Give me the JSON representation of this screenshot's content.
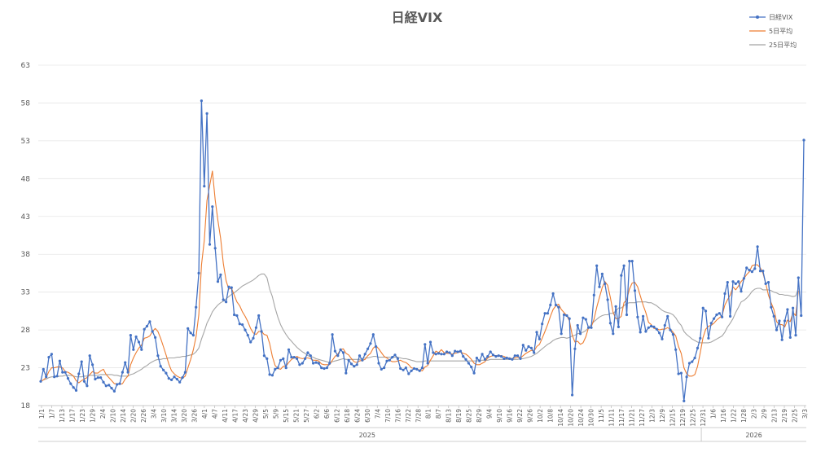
{
  "chart_data": {
    "type": "line",
    "title": "日経VIX",
    "ylim": [
      18,
      63
    ],
    "yticks": [
      18,
      23,
      28,
      33,
      38,
      43,
      48,
      53,
      58,
      63
    ],
    "grid": true,
    "legend_position": "top-right",
    "x_tick_labels": [
      "1/1",
      "1/7",
      "1/13",
      "1/17",
      "1/23",
      "1/29",
      "2/4",
      "2/10",
      "2/14",
      "2/20",
      "2/26",
      "3/4",
      "3/10",
      "3/14",
      "3/20",
      "3/26",
      "4/1",
      "4/7",
      "4/11",
      "4/17",
      "4/23",
      "4/29",
      "5/5",
      "5/9",
      "5/15",
      "5/21",
      "5/27",
      "6/2",
      "6/6",
      "6/12",
      "6/18",
      "6/24",
      "6/30",
      "7/4",
      "7/10",
      "7/16",
      "7/22",
      "7/28",
      "8/1",
      "8/7",
      "8/13",
      "8/19",
      "8/25",
      "8/29",
      "9/4",
      "9/10",
      "9/16",
      "9/22",
      "9/26",
      "10/2",
      "10/8",
      "10/14",
      "10/20",
      "10/24",
      "10/30",
      "11/5",
      "11/11",
      "11/17",
      "11/21",
      "11/27",
      "12/3",
      "12/9",
      "12/15",
      "12/19",
      "12/25",
      "12/31",
      "1/6",
      "1/16",
      "1/22",
      "1/28",
      "2/3",
      "2/9",
      "2/13",
      "2/19",
      "2/25",
      "3/3"
    ],
    "year_groups": [
      {
        "label": "2025",
        "start": 0,
        "end": 64
      },
      {
        "label": "2026",
        "start": 65,
        "end": 75
      }
    ],
    "series": [
      {
        "name": "日経VIX",
        "color": "#4472C4",
        "values": [
          21.2,
          22.8,
          21.8,
          24.4,
          24.8,
          21.8,
          21.9,
          23.9,
          22.4,
          22.4,
          21.6,
          20.9,
          20.4,
          20.0,
          22.2,
          23.8,
          21.2,
          20.6,
          24.6,
          23.4,
          21.5,
          21.7,
          21.7,
          21.1,
          20.6,
          20.7,
          20.3,
          19.9,
          20.8,
          20.9,
          22.4,
          23.7,
          22.4,
          27.3,
          25.4,
          27.1,
          26.4,
          25.4,
          28.1,
          28.5,
          29.1,
          27.8,
          27.0,
          24.6,
          23.2,
          22.7,
          22.3,
          21.6,
          21.4,
          21.8,
          21.5,
          21.1,
          21.7,
          22.4,
          28.2,
          27.6,
          27.3,
          31.0,
          35.5,
          58.3,
          47.0,
          56.6,
          39.3,
          44.3,
          38.8,
          34.4,
          35.3,
          32.0,
          31.7,
          33.7,
          33.6,
          30.0,
          29.9,
          28.8,
          28.7,
          28.0,
          27.3,
          26.4,
          26.9,
          28.3,
          29.9,
          27.8,
          24.6,
          24.2,
          22.1,
          22.0,
          22.8,
          23.0,
          24.0,
          24.2,
          23.0,
          25.4,
          24.4,
          24.4,
          24.2,
          23.4,
          23.6,
          24.2,
          25.0,
          24.6,
          23.6,
          23.7,
          23.6,
          23.0,
          22.9,
          23.0,
          23.6,
          27.4,
          25.2,
          24.6,
          25.4,
          25.0,
          22.3,
          24.0,
          23.5,
          23.2,
          23.4,
          24.6,
          24.0,
          24.8,
          25.5,
          26.2,
          27.4,
          25.8,
          23.6,
          22.8,
          23.0,
          23.9,
          24.0,
          24.4,
          24.7,
          24.2,
          22.9,
          22.7,
          23.0,
          22.2,
          22.6,
          22.9,
          22.8,
          22.6,
          23.0,
          26.1,
          23.6,
          26.4,
          25.0,
          24.8,
          24.9,
          24.8,
          24.8,
          25.1,
          25.0,
          24.6,
          25.2,
          25.1,
          25.2,
          24.5,
          24.1,
          23.6,
          23.1,
          22.3,
          24.3,
          23.9,
          24.8,
          24.1,
          24.5,
          25.1,
          24.7,
          24.5,
          24.6,
          24.5,
          24.2,
          24.3,
          24.2,
          24.1,
          24.6,
          24.6,
          24.2,
          26.0,
          25.3,
          25.8,
          25.6,
          25.0,
          27.7,
          26.8,
          28.8,
          30.2,
          30.2,
          31.3,
          32.8,
          31.3,
          31.0,
          27.5,
          30.0,
          29.9,
          29.5,
          19.4,
          25.5,
          28.6,
          27.5,
          29.6,
          29.4,
          28.3,
          28.3,
          32.6,
          36.5,
          33.7,
          35.4,
          34.1,
          32.0,
          28.9,
          27.5,
          31.1,
          28.4,
          35.2,
          36.5,
          30.0,
          37.1,
          37.1,
          33.2,
          29.7,
          27.7,
          29.8,
          27.8,
          28.3,
          28.5,
          28.4,
          28.1,
          27.6,
          26.8,
          28.6,
          29.8,
          28.0,
          27.4,
          25.4,
          22.2,
          22.3,
          18.6,
          21.8,
          23.6,
          23.8,
          24.3,
          25.6,
          26.9,
          30.9,
          30.5,
          26.9,
          28.9,
          29.5,
          30.0,
          30.2,
          29.7,
          32.8,
          34.3,
          29.8,
          34.4,
          34.1,
          34.4,
          33.1,
          34.8,
          36.2,
          35.9,
          35.7,
          36.1,
          39.0,
          35.8,
          35.8,
          34.1,
          34.3,
          31.0,
          29.8,
          28.0,
          29.2,
          26.7,
          29.2,
          30.7,
          27.0,
          30.9,
          27.3,
          34.9,
          29.9,
          53.1
        ]
      },
      {
        "name": "5日平均",
        "color": "#ED7D31",
        "values": [
          21.2,
          21.4,
          21.7,
          22.5,
          23.0,
          23.0,
          23.1,
          23.1,
          23.0,
          22.5,
          22.4,
          22.2,
          21.9,
          21.3,
          21.0,
          21.3,
          21.5,
          21.7,
          22.1,
          22.5,
          22.3,
          22.3,
          22.6,
          22.8,
          22.1,
          21.7,
          21.3,
          20.9,
          20.9,
          20.8,
          20.9,
          21.5,
          21.9,
          23.4,
          24.3,
          25.0,
          25.6,
          26.0,
          26.9,
          27.0,
          27.2,
          27.8,
          28.2,
          27.8,
          26.9,
          25.8,
          24.7,
          23.5,
          22.6,
          22.2,
          21.9,
          21.7,
          21.6,
          21.9,
          23.0,
          24.1,
          25.4,
          27.1,
          30.0,
          36.6,
          39.8,
          45.1,
          47.1,
          49.0,
          45.2,
          42.5,
          40.1,
          36.8,
          34.5,
          33.4,
          33.5,
          32.6,
          31.7,
          31.2,
          30.4,
          29.8,
          29.1,
          28.2,
          27.6,
          27.4,
          27.8,
          27.8,
          27.4,
          27.3,
          26.2,
          24.5,
          23.3,
          22.9,
          22.8,
          23.2,
          23.2,
          23.7,
          24.1,
          24.3,
          24.5,
          24.3,
          24.2,
          24.3,
          24.3,
          24.2,
          24.0,
          24.0,
          23.9,
          23.5,
          23.4,
          23.4,
          23.4,
          24.0,
          24.5,
          24.8,
          25.4,
          25.5,
          24.9,
          24.7,
          24.2,
          23.8,
          23.7,
          23.9,
          24.0,
          24.1,
          24.6,
          24.9,
          25.6,
          25.9,
          25.5,
          25.0,
          24.5,
          24.3,
          24.0,
          23.8,
          23.8,
          23.9,
          24.0,
          23.8,
          23.7,
          23.4,
          23.0,
          22.9,
          22.8,
          22.7,
          22.6,
          23.1,
          23.3,
          24.0,
          24.6,
          25.2,
          25.0,
          25.4,
          25.0,
          24.9,
          24.9,
          24.8,
          24.9,
          25.0,
          25.1,
          24.9,
          24.8,
          24.5,
          24.1,
          23.6,
          23.4,
          23.4,
          23.6,
          23.8,
          24.3,
          24.5,
          24.6,
          24.6,
          24.6,
          24.6,
          24.5,
          24.3,
          24.3,
          24.2,
          24.3,
          24.4,
          24.3,
          24.6,
          24.9,
          25.1,
          25.3,
          25.2,
          25.8,
          26.1,
          26.9,
          27.8,
          28.7,
          29.8,
          30.7,
          31.2,
          31.4,
          30.7,
          30.3,
          29.9,
          29.2,
          27.3,
          26.4,
          26.5,
          26.1,
          26.3,
          27.1,
          28.3,
          28.4,
          29.4,
          31.0,
          32.3,
          33.6,
          34.4,
          33.9,
          32.3,
          30.3,
          29.5,
          29.5,
          29.8,
          31.6,
          32.0,
          33.4,
          34.2,
          34.3,
          33.7,
          32.5,
          31.3,
          30.3,
          29.0,
          28.7,
          28.2,
          28.2,
          28.0,
          28.1,
          28.1,
          28.3,
          28.1,
          27.7,
          27.2,
          25.8,
          24.9,
          23.0,
          22.2,
          21.9,
          21.9,
          22.1,
          23.2,
          25.0,
          27.0,
          28.1,
          28.5,
          28.6,
          28.9,
          29.3,
          29.6,
          29.9,
          31.3,
          32.0,
          32.6,
          33.7,
          33.3,
          33.8,
          34.4,
          34.8,
          35.3,
          35.7,
          36.5,
          36.6,
          36.6,
          36.2,
          35.5,
          34.2,
          32.6,
          31.6,
          30.7,
          29.1,
          28.7,
          28.7,
          28.4,
          29.3,
          29.1,
          30.3,
          29.9,
          33.2
        ]
      },
      {
        "name": "25日平均",
        "color": "#A5A5A5",
        "values": [
          21.2,
          21.4,
          21.5,
          21.7,
          21.8,
          21.8,
          21.8,
          21.9,
          21.9,
          22.0,
          22.0,
          22.0,
          21.9,
          21.8,
          21.8,
          21.8,
          21.9,
          21.9,
          22.0,
          22.0,
          22.0,
          22.0,
          22.1,
          22.1,
          22.1,
          22.1,
          22.1,
          22.0,
          22.0,
          21.9,
          21.9,
          21.9,
          21.9,
          22.1,
          22.2,
          22.4,
          22.6,
          22.8,
          23.1,
          23.3,
          23.6,
          23.8,
          24.0,
          24.1,
          24.1,
          24.2,
          24.2,
          24.3,
          24.3,
          24.3,
          24.4,
          24.4,
          24.5,
          24.5,
          24.6,
          24.7,
          24.8,
          25.1,
          25.6,
          26.8,
          27.8,
          28.9,
          29.6,
          30.4,
          30.9,
          31.3,
          31.6,
          31.8,
          32.1,
          32.4,
          32.7,
          32.9,
          33.2,
          33.5,
          33.8,
          34.0,
          34.2,
          34.4,
          34.6,
          34.9,
          35.2,
          35.4,
          35.4,
          34.9,
          33.4,
          32.4,
          30.9,
          29.7,
          28.7,
          28.0,
          27.4,
          26.9,
          26.5,
          26.1,
          25.7,
          25.4,
          25.1,
          24.9,
          24.6,
          24.5,
          24.4,
          24.2,
          24.1,
          24.0,
          23.9,
          23.8,
          23.7,
          23.8,
          23.9,
          24.0,
          24.1,
          24.2,
          24.1,
          24.1,
          24.1,
          24.1,
          24.1,
          24.1,
          24.2,
          24.3,
          24.3,
          24.4,
          24.5,
          24.5,
          24.4,
          24.4,
          24.4,
          24.4,
          24.4,
          24.4,
          24.4,
          24.4,
          24.3,
          24.2,
          24.2,
          24.1,
          24.0,
          23.9,
          23.8,
          23.8,
          23.8,
          23.9,
          23.9,
          23.9,
          23.9,
          23.9,
          23.9,
          23.9,
          23.9,
          23.9,
          23.9,
          23.9,
          23.9,
          23.9,
          23.9,
          23.9,
          23.9,
          23.9,
          23.9,
          23.9,
          23.9,
          24.0,
          24.0,
          24.0,
          24.0,
          24.1,
          24.1,
          24.1,
          24.1,
          24.1,
          24.1,
          24.1,
          24.1,
          24.1,
          24.1,
          24.1,
          24.2,
          24.2,
          24.3,
          24.4,
          24.5,
          24.7,
          24.9,
          25.2,
          25.5,
          25.8,
          26.1,
          26.3,
          26.6,
          26.8,
          26.9,
          27.0,
          27.0,
          26.9,
          27.0,
          27.2,
          27.3,
          27.5,
          27.6,
          27.7,
          27.9,
          28.3,
          28.7,
          29.1,
          29.4,
          29.7,
          29.9,
          30.0,
          30.0,
          30.2,
          30.2,
          30.5,
          30.9,
          30.9,
          31.2,
          31.5,
          31.6,
          31.6,
          31.6,
          31.7,
          31.7,
          31.7,
          31.7,
          31.6,
          31.6,
          31.4,
          31.2,
          30.9,
          30.6,
          30.4,
          30.3,
          30.2,
          30.0,
          29.6,
          29.0,
          28.6,
          27.8,
          27.4,
          27.1,
          26.8,
          26.6,
          26.4,
          26.3,
          26.3,
          26.3,
          26.3,
          26.4,
          26.6,
          26.8,
          27.0,
          27.2,
          27.7,
          28.4,
          28.9,
          29.5,
          30.3,
          31.0,
          31.7,
          31.9,
          32.2,
          32.6,
          33.1,
          33.4,
          33.5,
          33.5,
          33.3,
          33.3,
          33.3,
          33.2,
          33.0,
          32.9,
          32.7,
          32.7,
          32.6,
          32.6,
          32.5,
          32.4,
          32.5,
          33.5
        ]
      }
    ]
  }
}
